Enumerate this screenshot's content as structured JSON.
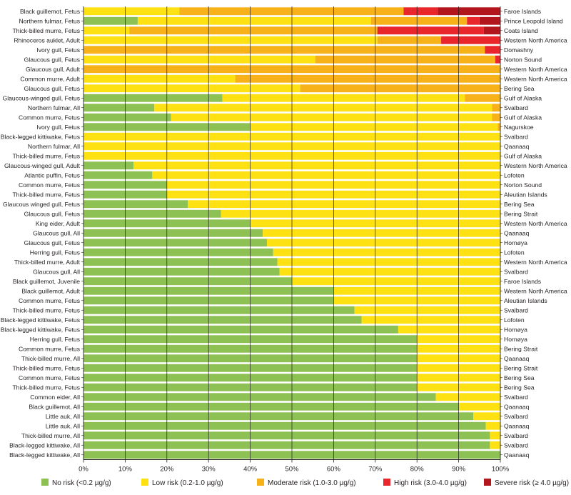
{
  "chart_data": {
    "type": "bar",
    "orientation": "horizontal",
    "stacked": true,
    "xlim": [
      0,
      100
    ],
    "grid": true,
    "legend_position": "bottom",
    "x_ticks": [
      "0%",
      "10%",
      "20%",
      "30%",
      "40%",
      "50%",
      "60%",
      "70%",
      "80%",
      "90%",
      "100%"
    ],
    "categories": [
      "Black guillemot, Fetus",
      "Northern fulmar, Fetus",
      "Thick-billed murre, Fetus",
      "Rhinoceros auklet, Adult",
      "Ivory gull, Fetus",
      "Glaucous gull, Fetus",
      "Glaucous gull, Adult",
      "Common murre, Adult",
      "Glaucous gull, Fetus",
      "Glaucous-winged gull, Fetus",
      "Northern fulmar, All",
      "Common murre, Fetus",
      "Ivory gull, Fetus",
      "Black-legged kittiwake, Fetus",
      "Northern fulmar, All",
      "Thick-billed murre, Fetus",
      "Glaucous-winged gull, Adult",
      "Atlantic puffin, Fetus",
      "Common murre, Fetus",
      "Thick-billed murre, Fetus",
      "Glaucous winged gull, Fetus",
      "Glaucous gull, Fetus",
      "King eider, Adult",
      "Glaucous gull, All",
      "Glaucous gull, Fetus",
      "Herring gull, Fetus",
      "Thick-billed murre, Adult",
      "Glaucous gull, All",
      "Black guillemot, Juvenile",
      "Black guillemot, Adult",
      "Common murre, Fetus",
      "Thick-billed murre, Fetus",
      "Black-legged kittiwake, Fetus",
      "Black-legged kittiwake, Fetus",
      "Herring gull, Fetus",
      "Common murre, Fetus",
      "Thick-billed murre, All",
      "Thick-billed murre, Fetus",
      "Common murre, Fetus",
      "Thick-billed murre, Fetus",
      "Common eider, All",
      "Black guillemot, All",
      "Little auk, All",
      "Little auk, All",
      "Thick-billed murre, All",
      "Black-legged kittiwake, All",
      "Black-legged kittiwake, All"
    ],
    "locations": [
      "Faroe Islands",
      "Prince Leopold Island",
      "Coats Island",
      "Western North America",
      "Domashny",
      "Norton Sound",
      "Western North America",
      "Western North America",
      "Bering Sea",
      "Gulf of Alaska",
      "Svalbard",
      "Gulf of Alaska",
      "Nagurskoe",
      "Svalbard",
      "Qaanaaq",
      "Gulf of Alaska",
      "Western North America",
      "Lofoten",
      "Norton Sound",
      "Aleutian Islands",
      "Bering Sea",
      "Bering Strait",
      "Western North America",
      "Qaanaaq",
      "Hornøya",
      "Lofoten",
      "Western North America",
      "Svalbard",
      "Faroe Islands",
      "Western North America",
      "Aleutian Islands",
      "Svalbard",
      "Lofoten",
      "Hornøya",
      "Hornøya",
      "Bering Strait",
      "Qaanaaq",
      "Bering Strait",
      "Bering Sea",
      "Bering Sea",
      "Svalbard",
      "Qaanaaq",
      "Svalbard",
      "Qaanaaq",
      "Svalbard",
      "Svalbard",
      "Qaanaaq"
    ],
    "series": [
      {
        "name": "No risk (<0.2 µg/g)",
        "color": "#8dc153",
        "values": [
          0,
          13,
          0,
          0,
          0,
          0,
          0,
          0,
          0,
          33.3,
          17,
          21,
          40,
          0,
          0,
          0,
          12,
          16.5,
          20,
          20,
          25,
          33,
          40,
          43,
          44,
          45.5,
          46.5,
          47,
          50,
          60,
          60,
          65,
          66.7,
          75.5,
          80,
          80,
          80,
          80,
          80,
          80,
          84.5,
          90,
          93.5,
          96.5,
          97.5,
          97.5,
          100
        ]
      },
      {
        "name": "Low risk (0.2-1.0 µg/g)",
        "color": "#fde113",
        "values": [
          23,
          56,
          11,
          70.5,
          0,
          55.6,
          0,
          36.4,
          52,
          58.2,
          81,
          77,
          59.4,
          100,
          100,
          100,
          88,
          83.5,
          80,
          80,
          75,
          67,
          60,
          57,
          56,
          54.5,
          53.5,
          53,
          50,
          40,
          40,
          35,
          33.3,
          24.5,
          20,
          20,
          20,
          20,
          20,
          20,
          15.5,
          10,
          6.5,
          3.5,
          2.5,
          2.5,
          0
        ]
      },
      {
        "name": "Moderate risk (1.0-3.0 µg/g)",
        "color": "#f7b21a",
        "values": [
          53.8,
          23,
          59.5,
          15.3,
          96.3,
          43.2,
          100,
          63.6,
          48,
          8.5,
          2,
          2,
          0.6,
          0,
          0,
          0,
          0,
          0,
          0,
          0,
          0,
          0,
          0,
          0,
          0,
          0,
          0,
          0,
          0,
          0,
          0,
          0,
          0,
          0,
          0,
          0,
          0,
          0,
          0,
          0,
          0,
          0,
          0,
          0,
          0,
          0,
          0
        ]
      },
      {
        "name": "High risk (3.0-4.0 µg/g)",
        "color": "#e9262b",
        "values": [
          8.2,
          3,
          25.5,
          14.2,
          3.7,
          1.2,
          0,
          0,
          0,
          0,
          0,
          0,
          0,
          0,
          0,
          0,
          0,
          0,
          0,
          0,
          0,
          0,
          0,
          0,
          0,
          0,
          0,
          0,
          0,
          0,
          0,
          0,
          0,
          0,
          0,
          0,
          0,
          0,
          0,
          0,
          0,
          0,
          0,
          0,
          0,
          0,
          0
        ]
      },
      {
        "name": "Severe risk (≥ 4.0 µg/g)",
        "color": "#b3151c",
        "values": [
          15,
          5,
          4,
          0,
          0,
          0,
          0,
          0,
          0,
          0,
          0,
          0,
          0,
          0,
          0,
          0,
          0,
          0,
          0,
          0,
          0,
          0,
          0,
          0,
          0,
          0,
          0,
          0,
          0,
          0,
          0,
          0,
          0,
          0,
          0,
          0,
          0,
          0,
          0,
          0,
          0,
          0,
          0,
          0,
          0,
          0,
          0
        ]
      }
    ]
  }
}
